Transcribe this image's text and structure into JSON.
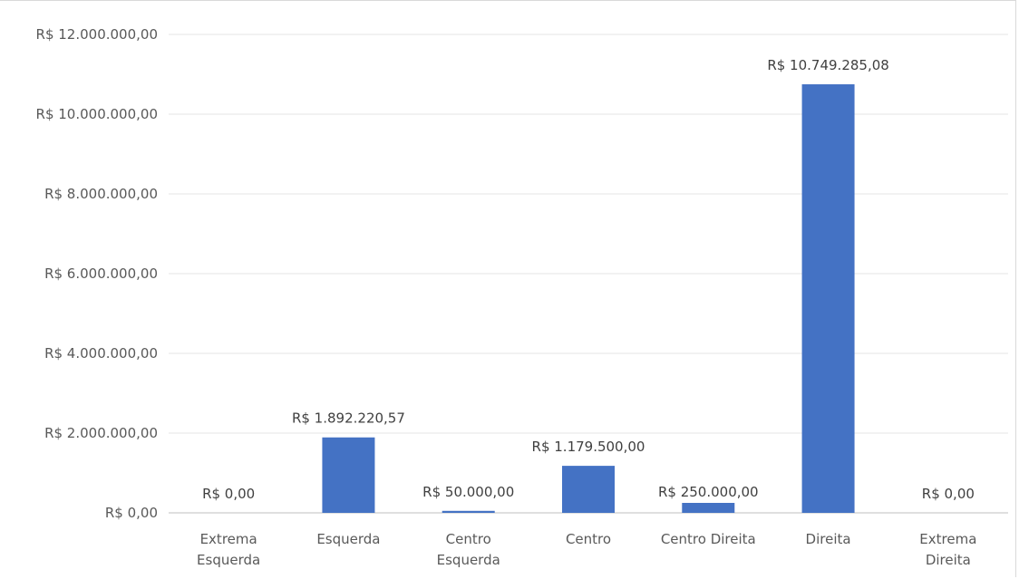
{
  "chart_data": {
    "type": "bar",
    "categories": [
      [
        "Extrema",
        "Esquerda"
      ],
      [
        "Esquerda"
      ],
      [
        "Centro",
        "Esquerda"
      ],
      [
        "Centro"
      ],
      [
        "Centro Direita"
      ],
      [
        "Direita"
      ],
      [
        "Extrema",
        "Direita"
      ]
    ],
    "values": [
      0,
      1892220.57,
      50000,
      1179500,
      250000,
      10749285.08,
      0
    ],
    "data_labels": [
      "R$ 0,00",
      "R$ 1.892.220,57",
      "R$ 50.000,00",
      "R$ 1.179.500,00",
      "R$ 250.000,00",
      "R$ 10.749.285,08",
      "R$ 0,00"
    ],
    "yticks": [
      0,
      2000000,
      4000000,
      6000000,
      8000000,
      10000000,
      12000000
    ],
    "ytick_labels": [
      "R$ 0,00",
      "R$ 2.000.000,00",
      "R$ 4.000.000,00",
      "R$ 6.000.000,00",
      "R$ 8.000.000,00",
      "R$ 10.000.000,00",
      "R$ 12.000.000,00"
    ],
    "ylim": [
      0,
      12000000
    ],
    "title": "",
    "xlabel": "",
    "ylabel": "",
    "grid": true,
    "legend": "none",
    "bar_color": "#4472c4"
  }
}
